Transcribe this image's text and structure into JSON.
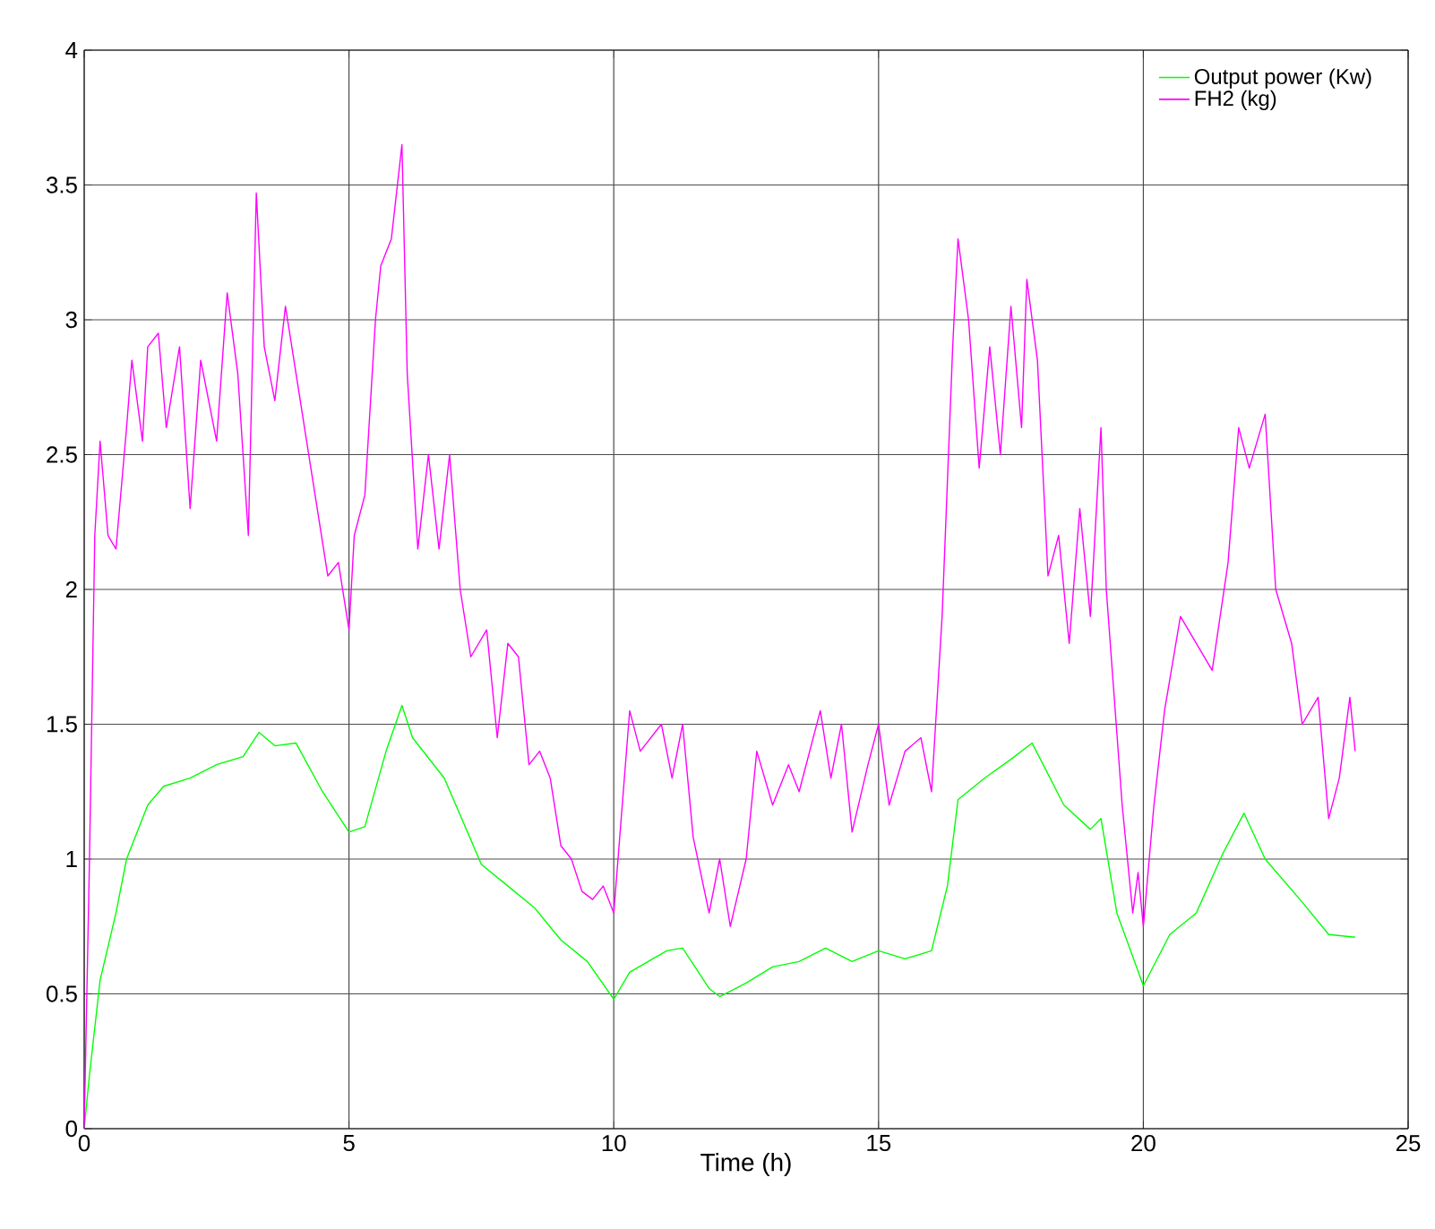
{
  "chart_data": {
    "type": "line",
    "xlabel": "Time (h)",
    "xlim": [
      0,
      25
    ],
    "ylim": [
      0,
      4
    ],
    "xticks": [
      0,
      5,
      10,
      15,
      20,
      25
    ],
    "yticks": [
      0,
      0.5,
      1,
      1.5,
      2,
      2.5,
      3,
      3.5,
      4
    ],
    "grid": true,
    "legend": "top right",
    "marker": "none",
    "line_style": "solid",
    "series": [
      {
        "name": "Output power (Kw)",
        "color": "#00ff00",
        "x": [
          0,
          0.1,
          0.3,
          0.6,
          0.8,
          1.2,
          1.5,
          2.0,
          2.5,
          3.0,
          3.3,
          3.6,
          4.0,
          4.5,
          5.0,
          5.3,
          5.7,
          6.0,
          6.2,
          6.8,
          7.5,
          8.0,
          8.5,
          9.0,
          9.5,
          10.0,
          10.3,
          11.0,
          11.3,
          11.8,
          12.0,
          12.5,
          13.0,
          13.5,
          14.0,
          14.5,
          15.0,
          15.5,
          16.0,
          16.3,
          16.5,
          17.0,
          17.5,
          17.9,
          18.5,
          19.0,
          19.2,
          19.5,
          20.0,
          20.5,
          21.0,
          21.5,
          21.9,
          22.3,
          23.0,
          23.5,
          24.0
        ],
        "values": [
          0,
          0.2,
          0.55,
          0.8,
          1.0,
          1.2,
          1.27,
          1.3,
          1.35,
          1.38,
          1.47,
          1.42,
          1.43,
          1.25,
          1.1,
          1.12,
          1.4,
          1.57,
          1.45,
          1.3,
          0.98,
          0.9,
          0.82,
          0.7,
          0.62,
          0.48,
          0.58,
          0.66,
          0.67,
          0.52,
          0.49,
          0.54,
          0.6,
          0.62,
          0.67,
          0.62,
          0.66,
          0.63,
          0.66,
          0.9,
          1.22,
          1.3,
          1.37,
          1.43,
          1.2,
          1.11,
          1.15,
          0.8,
          0.53,
          0.72,
          0.8,
          1.02,
          1.17,
          1.0,
          0.84,
          0.72,
          0.71
        ]
      },
      {
        "name": "FH2 (kg)",
        "color": "#ff00ff",
        "x": [
          0,
          0.1,
          0.2,
          0.3,
          0.45,
          0.6,
          0.8,
          0.9,
          1.1,
          1.2,
          1.4,
          1.55,
          1.8,
          2.0,
          2.2,
          2.5,
          2.7,
          2.9,
          3.1,
          3.25,
          3.4,
          3.6,
          3.8,
          4.0,
          4.2,
          4.4,
          4.6,
          4.8,
          5.0,
          5.1,
          5.3,
          5.5,
          5.6,
          5.8,
          6.0,
          6.1,
          6.3,
          6.5,
          6.7,
          6.9,
          7.1,
          7.3,
          7.6,
          7.8,
          8.0,
          8.2,
          8.4,
          8.6,
          8.8,
          9.0,
          9.2,
          9.4,
          9.6,
          9.8,
          10.0,
          10.2,
          10.3,
          10.5,
          10.9,
          11.1,
          11.3,
          11.5,
          11.8,
          12.0,
          12.2,
          12.5,
          12.7,
          13.0,
          13.3,
          13.5,
          13.9,
          14.1,
          14.3,
          14.5,
          14.8,
          15.0,
          15.2,
          15.5,
          15.8,
          16.0,
          16.2,
          16.4,
          16.5,
          16.7,
          16.9,
          17.1,
          17.3,
          17.5,
          17.7,
          17.8,
          18.0,
          18.2,
          18.4,
          18.6,
          18.8,
          19.0,
          19.2,
          19.3,
          19.6,
          19.8,
          19.9,
          20.0,
          20.2,
          20.4,
          20.7,
          21.0,
          21.3,
          21.6,
          21.8,
          22.0,
          22.3,
          22.5,
          22.8,
          23.0,
          23.3,
          23.5,
          23.7,
          23.9,
          24.0
        ],
        "values": [
          0,
          1.0,
          2.2,
          2.55,
          2.2,
          2.15,
          2.6,
          2.85,
          2.55,
          2.9,
          2.95,
          2.6,
          2.9,
          2.3,
          2.85,
          2.55,
          3.1,
          2.8,
          2.2,
          3.47,
          2.9,
          2.7,
          3.05,
          2.8,
          2.55,
          2.3,
          2.05,
          2.1,
          1.85,
          2.2,
          2.35,
          3.0,
          3.2,
          3.3,
          3.65,
          2.8,
          2.15,
          2.5,
          2.15,
          2.5,
          2.0,
          1.75,
          1.85,
          1.45,
          1.8,
          1.75,
          1.35,
          1.4,
          1.3,
          1.05,
          1.0,
          0.88,
          0.85,
          0.9,
          0.8,
          1.3,
          1.55,
          1.4,
          1.5,
          1.3,
          1.5,
          1.08,
          0.8,
          1.0,
          0.75,
          1.0,
          1.4,
          1.2,
          1.35,
          1.25,
          1.55,
          1.3,
          1.5,
          1.1,
          1.35,
          1.5,
          1.2,
          1.4,
          1.45,
          1.25,
          1.9,
          2.9,
          3.3,
          3.0,
          2.45,
          2.9,
          2.5,
          3.05,
          2.6,
          3.15,
          2.85,
          2.05,
          2.2,
          1.8,
          2.3,
          1.9,
          2.6,
          2.0,
          1.2,
          0.8,
          0.95,
          0.75,
          1.2,
          1.55,
          1.9,
          1.8,
          1.7,
          2.1,
          2.6,
          2.45,
          2.65,
          2.0,
          1.8,
          1.5,
          1.6,
          1.15,
          1.3,
          1.6,
          1.4
        ]
      }
    ]
  }
}
